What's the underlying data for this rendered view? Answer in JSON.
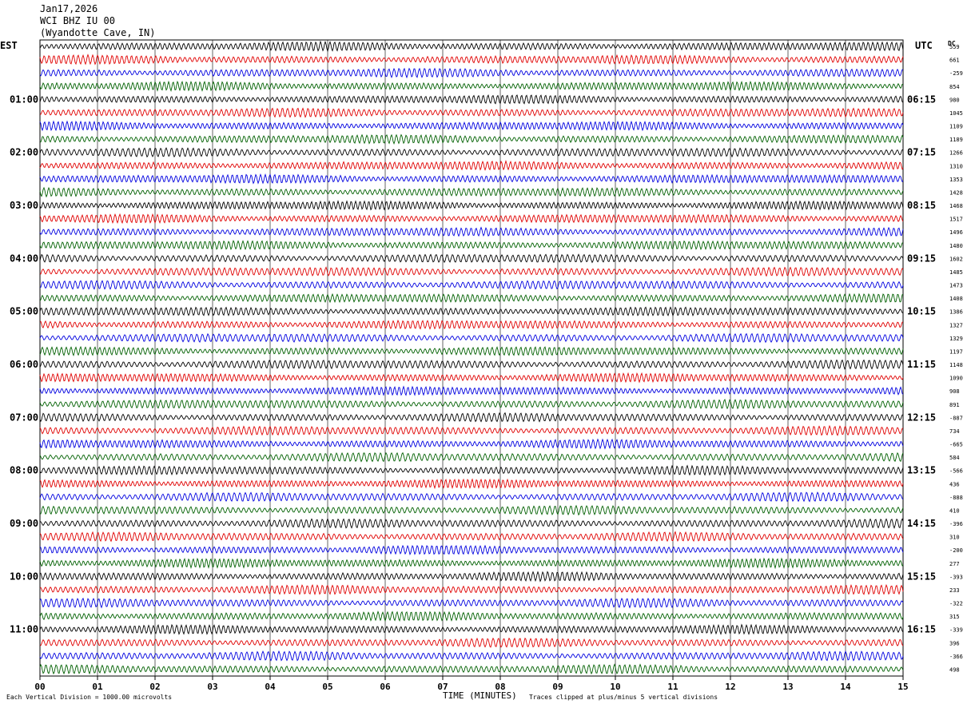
{
  "header": {
    "date": "Jan17,2026",
    "channel": "WCI BHZ IU 00",
    "location": "(Wyandotte Cave, IN)"
  },
  "left_zone": "EST",
  "right_zone": "UTC",
  "dc_label": "DC",
  "footer": {
    "scale_note": "Each Vertical Division = 1000.00 microvolts",
    "x_title": "TIME (MINUTES)",
    "clip_note": "Traces clipped at plus/minus 5 vertical divisions"
  },
  "colors": {
    "cycle": [
      "#000000",
      "#e00000",
      "#0000e0",
      "#006000"
    ],
    "grid": "#000000",
    "background": "#ffffff"
  },
  "chart_data": {
    "type": "line",
    "title": "",
    "xlabel": "TIME (MINUTES)",
    "x_ticks": [
      "00",
      "01",
      "02",
      "03",
      "04",
      "05",
      "06",
      "07",
      "08",
      "09",
      "10",
      "11",
      "12",
      "13",
      "14",
      "15"
    ],
    "xlim": [
      0,
      15
    ],
    "trace_count": 48,
    "traces_per_hour": 4,
    "left_time_labels": [
      "01:00",
      "02:00",
      "03:00",
      "04:00",
      "05:00",
      "06:00",
      "07:00",
      "08:00",
      "09:00",
      "10:00",
      "11:00"
    ],
    "right_time_labels": [
      "06:15",
      "07:15",
      "08:15",
      "09:15",
      "10:15",
      "11:15",
      "12:15",
      "13:15",
      "14:15",
      "15:15",
      "16:15"
    ],
    "dc_offsets": [
      "559",
      "661",
      "-259",
      "854",
      "980",
      "1045",
      "1109",
      "1189",
      "1266",
      "1310",
      "1353",
      "1428",
      "1468",
      "1517",
      "1496",
      "1480",
      "1602",
      "1485",
      "1473",
      "1408",
      "1386",
      "1327",
      "1329",
      "1197",
      "1148",
      "1090",
      "908",
      "891",
      "-887",
      "734",
      "-665",
      "584",
      "-566",
      "436",
      "-888",
      "410",
      "-396",
      "310",
      "-200",
      "277",
      "-393",
      "233",
      "-322",
      "315",
      "-339",
      "396",
      "-366",
      "498"
    ],
    "grid": true
  }
}
